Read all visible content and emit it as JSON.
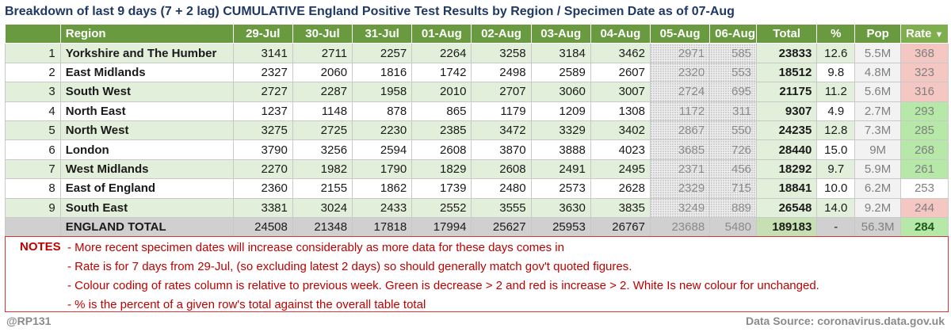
{
  "title": "Breakdown of last 9 days (7 + 2 lag) CUMULATIVE England Positive Test Results by Region / Specimen Date as of 07-Aug",
  "headers": {
    "region": "Region",
    "dates": [
      "29-Jul",
      "30-Jul",
      "31-Jul",
      "01-Aug",
      "02-Aug",
      "03-Aug",
      "04-Aug",
      "05-Aug",
      "06-Aug"
    ],
    "total": "Total",
    "pct": "%",
    "pop": "Pop",
    "rate": "Rate",
    "rate_sort_icon": "▼"
  },
  "colors": {
    "header_green": "#6a9a40",
    "row_green": "#e2efda",
    "rate_red": "#f4c7c3",
    "rate_green": "#b6e8a8",
    "notes_red": "#c00000"
  },
  "rows": [
    {
      "idx": "1",
      "region": "Yorkshire and The Humber",
      "vals": [
        "3141",
        "2711",
        "2257",
        "2264",
        "3258",
        "3184",
        "3462",
        "2971",
        "585"
      ],
      "total": "23833",
      "pct": "12.6",
      "pop": "5.5M",
      "rate": "368",
      "rate_status": "increase"
    },
    {
      "idx": "2",
      "region": "East Midlands",
      "vals": [
        "2327",
        "2060",
        "1816",
        "1742",
        "2498",
        "2589",
        "2607",
        "2320",
        "553"
      ],
      "total": "18512",
      "pct": "9.8",
      "pop": "4.8M",
      "rate": "323",
      "rate_status": "increase"
    },
    {
      "idx": "3",
      "region": "South West",
      "vals": [
        "2727",
        "2287",
        "1958",
        "2010",
        "2707",
        "3060",
        "3007",
        "2724",
        "695"
      ],
      "total": "21175",
      "pct": "11.2",
      "pop": "5.6M",
      "rate": "316",
      "rate_status": "increase"
    },
    {
      "idx": "4",
      "region": "North East",
      "vals": [
        "1237",
        "1148",
        "878",
        "865",
        "1179",
        "1209",
        "1308",
        "1172",
        "311"
      ],
      "total": "9307",
      "pct": "4.9",
      "pop": "2.7M",
      "rate": "293",
      "rate_status": "decrease"
    },
    {
      "idx": "5",
      "region": "North West",
      "vals": [
        "3275",
        "2725",
        "2230",
        "2385",
        "3472",
        "3329",
        "3402",
        "2867",
        "550"
      ],
      "total": "24235",
      "pct": "12.8",
      "pop": "7.3M",
      "rate": "285",
      "rate_status": "decrease"
    },
    {
      "idx": "6",
      "region": "London",
      "vals": [
        "3790",
        "3256",
        "2594",
        "2608",
        "3870",
        "3888",
        "4023",
        "3685",
        "726"
      ],
      "total": "28440",
      "pct": "15.0",
      "pop": "9M",
      "rate": "268",
      "rate_status": "decrease"
    },
    {
      "idx": "7",
      "region": "West Midlands",
      "vals": [
        "2270",
        "1982",
        "1790",
        "1829",
        "2608",
        "2491",
        "2495",
        "2371",
        "456"
      ],
      "total": "18292",
      "pct": "9.7",
      "pop": "5.9M",
      "rate": "261",
      "rate_status": "decrease"
    },
    {
      "idx": "8",
      "region": "East of England",
      "vals": [
        "2360",
        "2155",
        "1862",
        "1739",
        "2480",
        "2573",
        "2628",
        "2329",
        "715"
      ],
      "total": "18841",
      "pct": "10.0",
      "pop": "6.2M",
      "rate": "253",
      "rate_status": "unchanged"
    },
    {
      "idx": "9",
      "region": "South East",
      "vals": [
        "3381",
        "3024",
        "2433",
        "2552",
        "3555",
        "3630",
        "3835",
        "3249",
        "889"
      ],
      "total": "26548",
      "pct": "14.0",
      "pop": "9.2M",
      "rate": "244",
      "rate_status": "increase"
    }
  ],
  "total_row": {
    "region": "ENGLAND TOTAL",
    "vals": [
      "24508",
      "21348",
      "17818",
      "17994",
      "25627",
      "25953",
      "26767",
      "23688",
      "5480"
    ],
    "total": "189183",
    "pct": "-",
    "pop": "56.3M",
    "rate": "284",
    "rate_status": "decrease"
  },
  "notes": {
    "label": "NOTES",
    "lines": [
      "- More recent specimen dates will increase considerably as more data for these days comes in",
      "- Rate is for 7 days from 29-Jul, (so excluding latest 2 days) so should generally match gov't quoted figures.",
      "- Colour coding of rates column is relative to previous week. Green is decrease > 2 and red is increase > 2. White Is new colour for unchanged.",
      "- % is the percent of a given row's total against the overall table total"
    ]
  },
  "footer": {
    "author": "@RP131",
    "source": "Data Source: coronavirus.data.gov.uk"
  }
}
